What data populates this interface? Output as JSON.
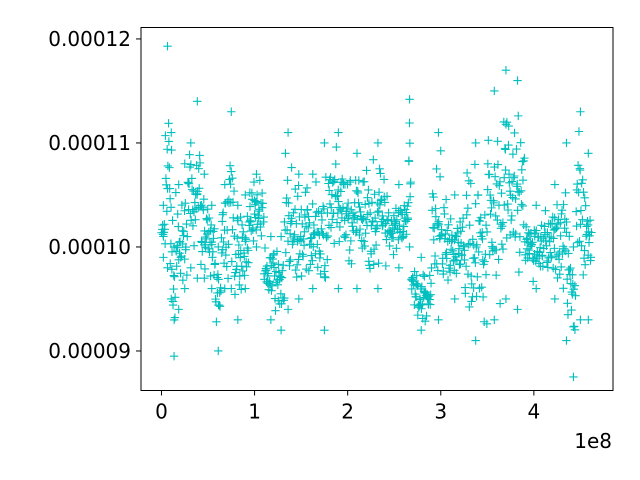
{
  "chart_data": {
    "type": "scatter",
    "marker": "plus",
    "title": "",
    "xlabel": "",
    "ylabel": "",
    "x_offset_label": "1e8",
    "xlim": [
      -0.22,
      4.85
    ],
    "ylim": [
      8.62e-05,
      0.0001211
    ],
    "grid": false,
    "colors": {
      "series": "#00bfbf",
      "axis": "#000000",
      "background": "#ffffff"
    },
    "x_ticks": [
      {
        "value": 0,
        "label": "0"
      },
      {
        "value": 1,
        "label": "1"
      },
      {
        "value": 2,
        "label": "2"
      },
      {
        "value": 3,
        "label": "3"
      },
      {
        "value": 4,
        "label": "4"
      }
    ],
    "y_ticks": [
      {
        "value": 9e-05,
        "label": "0.00009"
      },
      {
        "value": 0.0001,
        "label": "0.00010"
      },
      {
        "value": 0.00011,
        "label": "0.00011"
      },
      {
        "value": 0.00012,
        "label": "0.00012"
      }
    ],
    "series": [
      {
        "segments": [
          {
            "x0": 0.0,
            "x1": 0.04,
            "lo": 9.9e-05,
            "hi": 0.000104
          },
          {
            "x0": 0.04,
            "x1": 0.09,
            "lo": 9.8e-05,
            "hi": 0.0001193
          },
          {
            "x0": 0.09,
            "x1": 0.12,
            "lo": 9.5e-05,
            "hi": 0.000111
          },
          {
            "x0": 0.12,
            "x1": 0.15,
            "lo": 8.95e-05,
            "hi": 0.0001
          },
          {
            "x0": 0.15,
            "x1": 0.22,
            "lo": 9.4e-05,
            "hi": 0.000106
          },
          {
            "x0": 0.22,
            "x1": 0.28,
            "lo": 9.6e-05,
            "hi": 0.000108
          },
          {
            "x0": 0.28,
            "x1": 0.35,
            "lo": 9.8e-05,
            "hi": 0.00011
          },
          {
            "x0": 0.35,
            "x1": 0.42,
            "lo": 9.7e-05,
            "hi": 0.000114
          },
          {
            "x0": 0.42,
            "x1": 0.5,
            "lo": 9.7e-05,
            "hi": 0.000107
          },
          {
            "x0": 0.5,
            "x1": 0.58,
            "lo": 9.6e-05,
            "hi": 0.000104
          },
          {
            "x0": 0.58,
            "x1": 0.64,
            "lo": 9e-05,
            "hi": 0.0001
          },
          {
            "x0": 0.64,
            "x1": 0.72,
            "lo": 9.6e-05,
            "hi": 0.000106
          },
          {
            "x0": 0.72,
            "x1": 0.78,
            "lo": 9.6e-05,
            "hi": 0.000113
          },
          {
            "x0": 0.78,
            "x1": 0.86,
            "lo": 9.3e-05,
            "hi": 0.000104
          },
          {
            "x0": 0.86,
            "x1": 0.94,
            "lo": 9.6e-05,
            "hi": 0.000105
          },
          {
            "x0": 0.94,
            "x1": 1.1,
            "lo": 0.0001,
            "hi": 0.000107
          },
          {
            "x0": 1.1,
            "x1": 1.25,
            "lo": 9.3e-05,
            "hi": 0.000101
          },
          {
            "x0": 1.25,
            "x1": 1.32,
            "lo": 9.2e-05,
            "hi": 0.000101
          },
          {
            "x0": 1.32,
            "x1": 1.4,
            "lo": 9.4e-05,
            "hi": 0.000111
          },
          {
            "x0": 1.4,
            "x1": 1.55,
            "lo": 9.5e-05,
            "hi": 0.000107
          },
          {
            "x0": 1.55,
            "x1": 1.7,
            "lo": 9.6e-05,
            "hi": 0.000107
          },
          {
            "x0": 1.7,
            "x1": 1.8,
            "lo": 9.2e-05,
            "hi": 0.00011
          },
          {
            "x0": 1.8,
            "x1": 2.0,
            "lo": 9.6e-05,
            "hi": 0.000111
          },
          {
            "x0": 2.0,
            "x1": 2.2,
            "lo": 9.6e-05,
            "hi": 0.000109
          },
          {
            "x0": 2.2,
            "x1": 2.45,
            "lo": 9.6e-05,
            "hi": 0.00011
          },
          {
            "x0": 2.45,
            "x1": 2.65,
            "lo": 9.8e-05,
            "hi": 0.000106
          },
          {
            "x0": 2.65,
            "x1": 2.68,
            "lo": 0.0001,
            "hi": 0.0001142
          },
          {
            "x0": 2.68,
            "x1": 2.9,
            "lo": 9.2e-05,
            "hi": 9.9e-05
          },
          {
            "x0": 2.9,
            "x1": 3.05,
            "lo": 9.3e-05,
            "hi": 0.000111
          },
          {
            "x0": 3.05,
            "x1": 3.25,
            "lo": 9.5e-05,
            "hi": 0.000105
          },
          {
            "x0": 3.25,
            "x1": 3.5,
            "lo": 9.1e-05,
            "hi": 0.00011
          },
          {
            "x0": 3.5,
            "x1": 3.65,
            "lo": 9.3e-05,
            "hi": 0.000115
          },
          {
            "x0": 3.65,
            "x1": 3.75,
            "lo": 9.5e-05,
            "hi": 0.000117
          },
          {
            "x0": 3.75,
            "x1": 3.9,
            "lo": 9.4e-05,
            "hi": 0.000116
          },
          {
            "x0": 3.9,
            "x1": 4.15,
            "lo": 9.6e-05,
            "hi": 0.000104
          },
          {
            "x0": 4.15,
            "x1": 4.3,
            "lo": 9.5e-05,
            "hi": 0.000106
          },
          {
            "x0": 4.3,
            "x1": 4.4,
            "lo": 9.1e-05,
            "hi": 0.00011
          },
          {
            "x0": 4.4,
            "x1": 4.45,
            "lo": 8.75e-05,
            "hi": 0.0001
          },
          {
            "x0": 4.45,
            "x1": 4.55,
            "lo": 9.3e-05,
            "hi": 0.000113
          },
          {
            "x0": 4.55,
            "x1": 4.62,
            "lo": 9.3e-05,
            "hi": 0.000109
          }
        ]
      }
    ]
  }
}
